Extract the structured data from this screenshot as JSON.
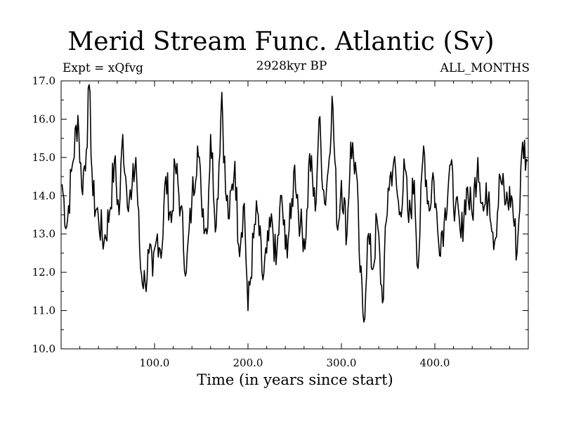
{
  "chart_data": {
    "type": "line",
    "title": "Merid Stream Func. Atlantic (Sv)",
    "subtitle": "2928kyr BP",
    "left_note": "Expt = xQfvg",
    "right_note": "ALL_MONTHS",
    "xlabel": "Time (in years since start)",
    "ylabel": "",
    "xlim": [
      0,
      500
    ],
    "ylim": [
      10.0,
      17.0
    ],
    "x_ticks": [
      100,
      200,
      300,
      400
    ],
    "x_tick_labels": [
      "100.0",
      "200.0",
      "300.0",
      "400.0"
    ],
    "y_ticks": [
      10,
      11,
      12,
      13,
      14,
      15,
      16,
      17
    ],
    "y_tick_labels": [
      "10.0",
      "11.0",
      "12.0",
      "13.0",
      "14.0",
      "15.0",
      "16.0",
      "17.0"
    ],
    "grid": false,
    "series": [
      {
        "name": "Merid Stream Func.",
        "x": [
          1,
          6,
          12,
          18,
          22,
          27,
          30,
          34,
          40,
          46,
          52,
          57,
          62,
          66,
          70,
          75,
          80,
          85,
          90,
          94,
          98,
          103,
          108,
          112,
          118,
          122,
          128,
          134,
          140,
          146,
          150,
          156,
          160,
          166,
          172,
          176,
          180,
          186,
          190,
          196,
          200,
          206,
          210,
          216,
          220,
          226,
          230,
          236,
          240,
          246,
          250,
          256,
          262,
          266,
          272,
          276,
          282,
          286,
          290,
          296,
          300,
          306,
          310,
          316,
          320,
          324,
          328,
          334,
          338,
          344,
          350,
          356,
          362,
          368,
          372,
          378,
          382,
          388,
          394,
          398,
          404,
          410,
          416,
          422,
          428,
          434,
          440,
          446,
          452,
          458,
          464,
          470,
          476,
          482,
          488,
          494,
          499
        ],
        "values": [
          14.3,
          13.2,
          14.8,
          16.1,
          14.2,
          15.2,
          16.9,
          14.0,
          13.4,
          12.8,
          13.6,
          14.9,
          13.5,
          15.6,
          14.2,
          13.9,
          15.0,
          12.1,
          11.7,
          12.5,
          11.9,
          13.0,
          12.6,
          14.5,
          13.3,
          14.8,
          13.7,
          12.0,
          13.9,
          15.3,
          14.0,
          13.0,
          15.6,
          13.2,
          16.7,
          14.1,
          13.4,
          14.9,
          12.7,
          13.8,
          11.0,
          12.9,
          13.6,
          11.8,
          12.5,
          13.3,
          12.2,
          14.0,
          12.6,
          13.4,
          14.8,
          13.2,
          12.9,
          15.1,
          13.6,
          16.0,
          13.8,
          14.7,
          16.6,
          13.1,
          14.4,
          13.0,
          15.4,
          14.6,
          12.0,
          10.7,
          12.9,
          12.1,
          13.4,
          11.2,
          14.2,
          14.9,
          13.5,
          14.7,
          13.3,
          14.4,
          12.1,
          15.3,
          13.6,
          14.6,
          12.8,
          13.3,
          14.8,
          13.7,
          12.9,
          14.2,
          13.5,
          15.0,
          13.6,
          14.1,
          12.8,
          14.5,
          13.8,
          14.0,
          12.5,
          15.4,
          14.9
        ]
      }
    ]
  }
}
